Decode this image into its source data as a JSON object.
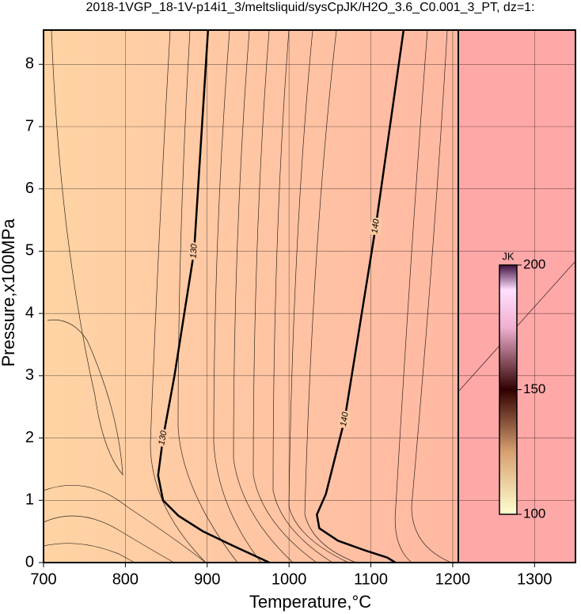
{
  "chart_data": {
    "type": "contour",
    "title": "2018-1VGP_18-1V-p14i1_3/meltsliquid/sysCpJK/H2O_3.6_C0.001_3_PT, dz=1:",
    "xlabel": "Temperature,°C",
    "ylabel": "Pressure,x100MPa",
    "xlim": [
      700,
      1350
    ],
    "ylim": [
      0,
      8.55
    ],
    "xticks": [
      700,
      800,
      900,
      1000,
      1100,
      1200,
      1300
    ],
    "yticks": [
      0,
      1,
      2,
      3,
      4,
      5,
      6,
      7,
      8
    ],
    "grid": true,
    "contours": [
      {
        "level": 130,
        "x": [
          901,
          884,
          860,
          846,
          840,
          846,
          865,
          895,
          930,
          976
        ],
        "y": [
          8.55,
          5.0,
          3.0,
          2.0,
          1.4,
          1.0,
          0.75,
          0.5,
          0.28,
          0
        ]
      },
      {
        "level": 140,
        "x": [
          1140,
          1106,
          1068,
          1045,
          1034,
          1037,
          1060,
          1092,
          1120,
          1130
        ],
        "y": [
          8.55,
          5.4,
          2.3,
          1.1,
          0.77,
          0.55,
          0.35,
          0.2,
          0.08,
          0
        ]
      }
    ],
    "colorbar": {
      "label": "JK",
      "lim": [
        100,
        200
      ],
      "ticks": [
        100,
        150,
        200
      ]
    }
  }
}
